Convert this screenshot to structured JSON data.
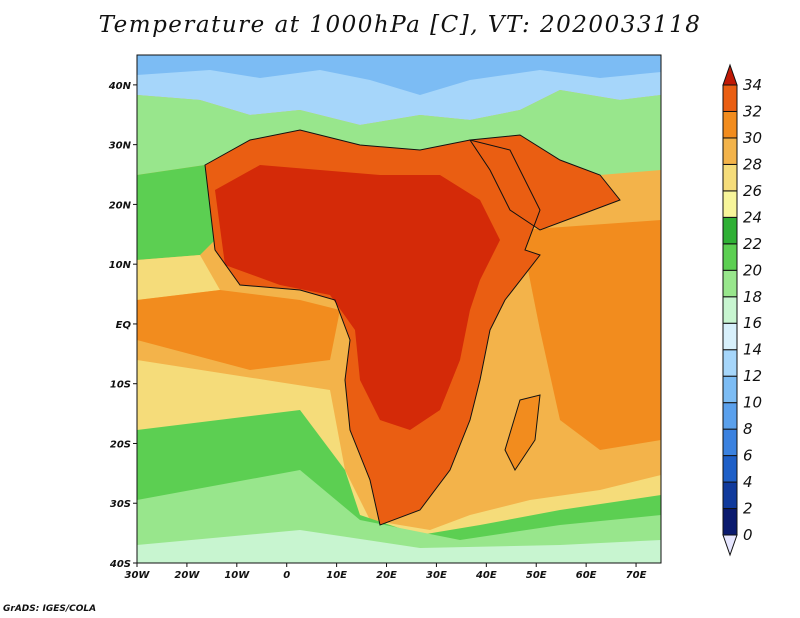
{
  "title": "Temperature at 1000hPa [C], VT: 2020033118",
  "credit": "GrADS: IGES/COLA",
  "map": {
    "type": "filled-contour",
    "variable": "Temperature at 1000hPa",
    "units": "C",
    "valid_time": "2020033118",
    "lon_range": [
      -30,
      75
    ],
    "lat_range": [
      -40,
      45
    ],
    "x_ticks": [
      "30W",
      "20W",
      "10W",
      "0",
      "10E",
      "20E",
      "30E",
      "40E",
      "50E",
      "60E",
      "70E"
    ],
    "y_ticks": [
      "40N",
      "30N",
      "20N",
      "10N",
      "EQ",
      "10S",
      "20S",
      "30S",
      "40S"
    ]
  },
  "colorbar": {
    "levels": [
      "0",
      "2",
      "4",
      "6",
      "8",
      "10",
      "12",
      "14",
      "16",
      "18",
      "20",
      "22",
      "24",
      "26",
      "28",
      "30",
      "32",
      "34"
    ],
    "colors": [
      "#0a1a6e",
      "#103a9c",
      "#1e5fc8",
      "#3b82e0",
      "#5aa0ec",
      "#7cbcf4",
      "#a6d6fa",
      "#d8f0fb",
      "#c8f5d0",
      "#98e68c",
      "#5ccf52",
      "#2fb035",
      "#f7f59a",
      "#f5dc7a",
      "#f3b34a",
      "#f28c1e",
      "#ea5e12",
      "#d42a08",
      "#c01905"
    ]
  }
}
